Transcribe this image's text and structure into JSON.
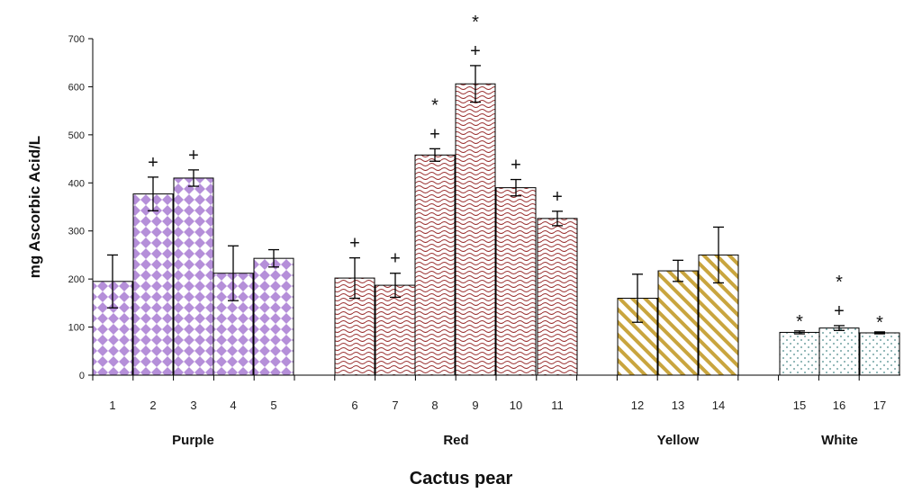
{
  "chart_data": {
    "type": "bar",
    "title": "",
    "xlabel": "Cactus pear",
    "ylabel": "mg Ascorbic Acid/L",
    "ylim": [
      0,
      700
    ],
    "yticks": [
      "0",
      "100",
      "200",
      "300",
      "400",
      "500",
      "600",
      "700"
    ],
    "grid": false,
    "categories": [
      "1",
      "2",
      "3",
      "4",
      "5",
      "6",
      "7",
      "8",
      "9",
      "10",
      "11",
      "12",
      "13",
      "14",
      "15",
      "16",
      "17"
    ],
    "values": [
      195,
      377,
      410,
      212,
      243,
      202,
      187,
      458,
      606,
      390,
      326,
      160,
      217,
      250,
      89,
      98,
      88
    ],
    "errors": [
      55,
      35,
      17,
      57,
      18,
      42,
      25,
      13,
      38,
      17,
      15,
      50,
      22,
      58,
      3,
      5,
      2
    ],
    "groups": [
      {
        "name": "Purple",
        "color": "#b58fd9",
        "pattern": "diamond",
        "indices": [
          0,
          1,
          2,
          3,
          4
        ]
      },
      {
        "name": "Red",
        "color": "#9a3030",
        "pattern": "wave",
        "indices": [
          5,
          6,
          7,
          8,
          9,
          10
        ]
      },
      {
        "name": "Yellow",
        "color": "#c9a53e",
        "pattern": "stripe",
        "indices": [
          11,
          12,
          13
        ]
      },
      {
        "name": "White",
        "color": "#4a8a8a",
        "pattern": "dots",
        "indices": [
          14,
          15,
          16
        ]
      }
    ],
    "annotations": [
      {
        "index": 1,
        "symbols": [
          "+"
        ]
      },
      {
        "index": 2,
        "symbols": [
          "+"
        ]
      },
      {
        "index": 5,
        "symbols": [
          "+"
        ]
      },
      {
        "index": 6,
        "symbols": [
          "+"
        ]
      },
      {
        "index": 7,
        "symbols": [
          "*",
          "+"
        ]
      },
      {
        "index": 8,
        "symbols": [
          "*",
          "+"
        ]
      },
      {
        "index": 9,
        "symbols": [
          "+"
        ]
      },
      {
        "index": 10,
        "symbols": [
          "+"
        ]
      },
      {
        "index": 14,
        "symbols": [
          "*"
        ]
      },
      {
        "index": 15,
        "symbols": [
          "*",
          "+"
        ]
      },
      {
        "index": 16,
        "symbols": [
          "*"
        ]
      }
    ]
  }
}
